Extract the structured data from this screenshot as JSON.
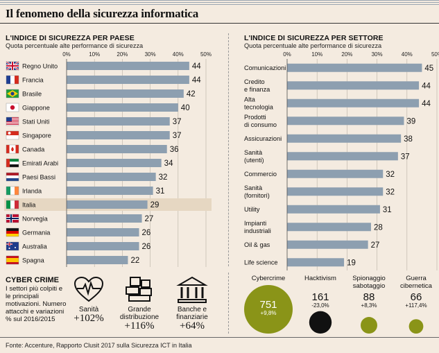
{
  "title": "Il fenomeno della sicurezza informatica",
  "left": {
    "heading": "L'INDICE DI SICUREZZA PER PAESE",
    "subtitle": "Quota percentuale alte performance di sicurezza"
  },
  "right": {
    "heading": "L'INDICE DI SICUREZZA PER SETTORE",
    "subtitle": "Quota percentuale alte performance di sicurezza"
  },
  "chart_data": [
    {
      "type": "bar",
      "orientation": "horizontal",
      "ticks": [
        "0%",
        "10%",
        "20%",
        "30%",
        "40%",
        "50%"
      ],
      "xlim": [
        0,
        50
      ],
      "categories": [
        "Regno Unito",
        "Francia",
        "Brasile",
        "Giappone",
        "Stati Uniti",
        "Singapore",
        "Canada",
        "Emirati Arabi",
        "Paesi Bassi",
        "Irlanda",
        "Italia",
        "Norvegia",
        "Germania",
        "Australia",
        "Spagna"
      ],
      "values": [
        44,
        44,
        42,
        40,
        37,
        37,
        36,
        34,
        32,
        31,
        29,
        27,
        26,
        26,
        22
      ],
      "highlight": "Italia",
      "bar_color": "#8d9fb0",
      "highlight_color": "#e6d7c2"
    },
    {
      "type": "bar",
      "orientation": "horizontal",
      "ticks": [
        "0%",
        "10%",
        "20%",
        "30%",
        "40%",
        "50%"
      ],
      "xlim": [
        0,
        50
      ],
      "categories": [
        [
          "Comunicazioni"
        ],
        [
          "Credito",
          "e finanza"
        ],
        [
          "Alta",
          "tecnologia"
        ],
        [
          "Prodotti",
          "di consumo"
        ],
        [
          "Assicurazioni"
        ],
        [
          "Sanità",
          "(utenti)"
        ],
        [
          "Commercio"
        ],
        [
          "Sanità",
          "(fornitori)"
        ],
        [
          "Utility"
        ],
        [
          "Impianti",
          "industriali"
        ],
        [
          "Oil & gas"
        ],
        [
          "Life science"
        ]
      ],
      "values": [
        45,
        44,
        44,
        39,
        38,
        37,
        32,
        32,
        31,
        28,
        27,
        19
      ],
      "bar_color": "#8d9fb0"
    },
    {
      "type": "bubble",
      "categories": [
        "Cybercrime",
        "Hacktivism",
        "Spionaggio sabotaggio",
        "Guerra cibernetica"
      ],
      "labels": [
        [
          "Cybercrime"
        ],
        [
          "Hacktivism"
        ],
        [
          "Spionaggio",
          "sabotaggio"
        ],
        [
          "Guerra",
          "cibernetica"
        ]
      ],
      "values": [
        751,
        161,
        88,
        66
      ],
      "changes": [
        "+9,8%",
        "-23,0%",
        "+8,3%",
        "+117,4%"
      ],
      "colors": [
        "#8a9418",
        "#111111",
        "#8a9418",
        "#8a9418"
      ]
    }
  ],
  "cyber": {
    "title": "CYBER CRIME",
    "desc": "I settori più colpiti e le principali motivazioni. Numero attacchi e variazioni % sul 2016/2015",
    "sectors": [
      {
        "label1": "Sanità",
        "label2": "",
        "value": "+102%",
        "icon": "heart-pulse-icon"
      },
      {
        "label1": "Grande",
        "label2": "distribuzione",
        "value": "+116%",
        "icon": "boxes-icon"
      },
      {
        "label1": "Banche e",
        "label2": "finanziarie",
        "value": "+64%",
        "icon": "bank-icon"
      }
    ]
  },
  "source": "Fonte: Accenture, Rapporto Clusit 2017 sulla Sicurezza ICT in Italia"
}
